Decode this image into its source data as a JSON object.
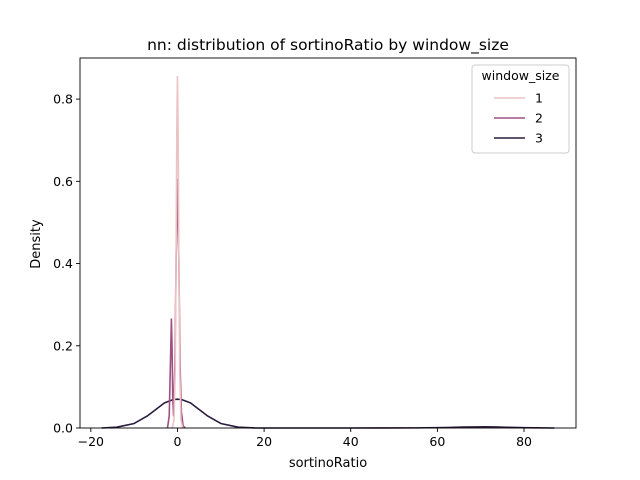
{
  "chart_data": {
    "type": "line",
    "title": "nn: distribution of sortinoRatio by window_size",
    "xlabel": "sortinoRatio",
    "ylabel": "Density",
    "xlim": [
      -22.5,
      92
    ],
    "ylim": [
      0,
      0.9
    ],
    "xticks": [
      -20,
      0,
      20,
      40,
      60,
      80
    ],
    "yticks": [
      0.0,
      0.2,
      0.4,
      0.6,
      0.8
    ],
    "xtick_labels": [
      "−20",
      "0",
      "20",
      "40",
      "60",
      "80"
    ],
    "ytick_labels": [
      "0.0",
      "0.2",
      "0.4",
      "0.6",
      "0.8"
    ],
    "grid": false,
    "legend": {
      "title": "window_size",
      "placement": "top-right"
    },
    "series": [
      {
        "name": "1",
        "color": "#ebc3c4",
        "x": [
          -1.2,
          -0.8,
          -0.5,
          -0.3,
          -0.15,
          0.0,
          0.15,
          0.3,
          0.5,
          0.8,
          1.2
        ],
        "y": [
          0.0,
          0.02,
          0.15,
          0.45,
          0.72,
          0.855,
          0.72,
          0.45,
          0.15,
          0.02,
          0.0
        ]
      },
      {
        "name": "2",
        "color": "#a05083",
        "x": [
          -2.3,
          -1.9,
          -1.6,
          -1.4,
          -1.25,
          -1.1,
          -0.9,
          -0.6,
          -0.3,
          0.0,
          0.3,
          0.6,
          0.9,
          1.3,
          1.8
        ],
        "y": [
          0.0,
          0.03,
          0.17,
          0.265,
          0.2,
          0.08,
          0.03,
          0.15,
          0.42,
          0.605,
          0.42,
          0.15,
          0.04,
          0.005,
          0.0
        ]
      },
      {
        "name": "3",
        "color": "#2a1c3f",
        "x": [
          -17.5,
          -14,
          -10,
          -7,
          -5,
          -3,
          -1,
          0,
          1,
          3,
          5,
          7,
          10,
          14,
          18,
          25,
          40,
          55,
          62,
          66,
          69,
          71,
          73,
          76,
          80,
          87
        ],
        "y": [
          0.0,
          0.002,
          0.011,
          0.029,
          0.045,
          0.061,
          0.069,
          0.07,
          0.069,
          0.061,
          0.045,
          0.029,
          0.011,
          0.002,
          0.0,
          0.0,
          0.0,
          0.0003,
          0.0012,
          0.0022,
          0.0027,
          0.0028,
          0.0026,
          0.0018,
          0.0008,
          0.0
        ]
      }
    ]
  }
}
